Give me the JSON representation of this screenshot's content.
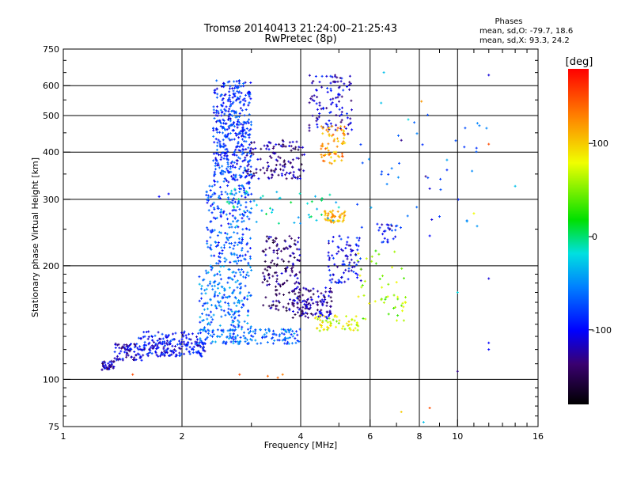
{
  "chart_data": {
    "type": "scatter",
    "title": "Tromsø 20140413 21:24:00–21:25:43",
    "subtitle": "RwPretec (8p)",
    "xlabel": "Frequency [MHz]",
    "ylabel": "Stationary phase Virtual Height [km]",
    "x_scale": "log",
    "y_scale": "log",
    "xlim": [
      1,
      16
    ],
    "ylim": [
      75,
      750
    ],
    "x_ticks": [
      1,
      2,
      4,
      6,
      8,
      10,
      16
    ],
    "x_tick_labels": [
      "1",
      "2",
      "4",
      "6",
      "8",
      "10",
      "16"
    ],
    "y_ticks": [
      75,
      100,
      200,
      300,
      400,
      500,
      600,
      750
    ],
    "y_tick_labels": [
      "75",
      "100",
      "200",
      "300",
      "400",
      "500",
      "600",
      "750"
    ],
    "grid": true,
    "legend": {
      "title": "Phases",
      "lines": [
        "mean, sd,O: -79.7, 18.6",
        "mean, sd,X:  93.3, 24.2"
      ]
    },
    "colorbar": {
      "label": "[deg]",
      "range": [
        -180,
        180
      ],
      "ticks": [
        100,
        0,
        -100
      ],
      "tick_labels": [
        "100",
        "0",
        "-100"
      ],
      "colormap": "rainbow"
    },
    "clusters": [
      {
        "x": [
          1.25,
          1.35
        ],
        "y": [
          106,
          112
        ],
        "phase": -120,
        "n": 40
      },
      {
        "x": [
          1.35,
          1.6
        ],
        "y": [
          112,
          125
        ],
        "phase": -110,
        "n": 80
      },
      {
        "x": [
          1.6,
          2.3
        ],
        "y": [
          115,
          126
        ],
        "phase": -100,
        "n": 140
      },
      {
        "x": [
          1.55,
          2.2
        ],
        "y": [
          124,
          134
        ],
        "phase": -95,
        "n": 60
      },
      {
        "x": [
          2.2,
          4.0
        ],
        "y": [
          124,
          136
        ],
        "phase": -65,
        "n": 160
      },
      {
        "x": [
          2.4,
          3.0
        ],
        "y": [
          330,
          620
        ],
        "phase": -85,
        "n": 420
      },
      {
        "x": [
          2.3,
          3.0
        ],
        "y": [
          200,
          330
        ],
        "phase": -75,
        "n": 220
      },
      {
        "x": [
          2.2,
          3.0
        ],
        "y": [
          135,
          200
        ],
        "phase": -60,
        "n": 200
      },
      {
        "x": [
          2.9,
          4.1
        ],
        "y": [
          340,
          430
        ],
        "phase": -130,
        "n": 130
      },
      {
        "x": [
          3.2,
          4.0
        ],
        "y": [
          150,
          240
        ],
        "phase": -135,
        "n": 160
      },
      {
        "x": [
          3.8,
          4.8
        ],
        "y": [
          145,
          175
        ],
        "phase": -125,
        "n": 130
      },
      {
        "x": [
          4.2,
          5.4
        ],
        "y": [
          440,
          640
        ],
        "phase": -110,
        "n": 110
      },
      {
        "x": [
          4.5,
          5.2
        ],
        "y": [
          370,
          470
        ],
        "phase": 120,
        "n": 70
      },
      {
        "x": [
          4.6,
          5.2
        ],
        "y": [
          260,
          280
        ],
        "phase": 110,
        "n": 50
      },
      {
        "x": [
          4.7,
          5.7
        ],
        "y": [
          180,
          240
        ],
        "phase": -100,
        "n": 90
      },
      {
        "x": [
          4.3,
          5.6
        ],
        "y": [
          134,
          148
        ],
        "phase": 75,
        "n": 60
      },
      {
        "x": [
          5.5,
          7.5
        ],
        "y": [
          140,
          220
        ],
        "phase": 60,
        "n": 50
      },
      {
        "x": [
          6.2,
          7.2
        ],
        "y": [
          230,
          260
        ],
        "phase": -100,
        "n": 25
      },
      {
        "x": [
          2.5,
          5.0
        ],
        "y": [
          255,
          320
        ],
        "phase": -20,
        "n": 50
      },
      {
        "x": [
          5.5,
          12.0
        ],
        "y": [
          250,
          520
        ],
        "phase": -60,
        "n": 40
      }
    ],
    "sparse_points": [
      {
        "x": 1.75,
        "y": 305,
        "phase": -100
      },
      {
        "x": 1.85,
        "y": 310,
        "phase": -100
      },
      {
        "x": 1.5,
        "y": 103,
        "phase": 150
      },
      {
        "x": 2.8,
        "y": 103,
        "phase": 150
      },
      {
        "x": 3.3,
        "y": 102,
        "phase": 140
      },
      {
        "x": 3.5,
        "y": 101,
        "phase": 140
      },
      {
        "x": 3.6,
        "y": 103,
        "phase": 130
      },
      {
        "x": 6.5,
        "y": 650,
        "phase": -30
      },
      {
        "x": 8.5,
        "y": 84,
        "phase": 150
      },
      {
        "x": 7.2,
        "y": 82,
        "phase": 100
      },
      {
        "x": 8.2,
        "y": 77,
        "phase": -30
      },
      {
        "x": 10.0,
        "y": 105,
        "phase": -130
      },
      {
        "x": 12.0,
        "y": 640,
        "phase": -110
      },
      {
        "x": 12.0,
        "y": 420,
        "phase": 150
      },
      {
        "x": 12.0,
        "y": 185,
        "phase": -110
      },
      {
        "x": 12.0,
        "y": 120,
        "phase": -100
      },
      {
        "x": 12.0,
        "y": 125,
        "phase": -100
      },
      {
        "x": 14.0,
        "y": 325,
        "phase": -30
      },
      {
        "x": 11.0,
        "y": 275,
        "phase": 80
      },
      {
        "x": 10.0,
        "y": 170,
        "phase": -20
      },
      {
        "x": 8.3,
        "y": 345,
        "phase": -130
      },
      {
        "x": 8.5,
        "y": 320,
        "phase": -110
      },
      {
        "x": 8.1,
        "y": 545,
        "phase": 120
      },
      {
        "x": 7.2,
        "y": 430,
        "phase": -130
      },
      {
        "x": 7.5,
        "y": 488,
        "phase": -20
      },
      {
        "x": 6.4,
        "y": 540,
        "phase": -30
      },
      {
        "x": 8.6,
        "y": 265,
        "phase": -110
      },
      {
        "x": 9.0,
        "y": 270,
        "phase": -80
      },
      {
        "x": 8.5,
        "y": 240,
        "phase": -100
      }
    ]
  }
}
